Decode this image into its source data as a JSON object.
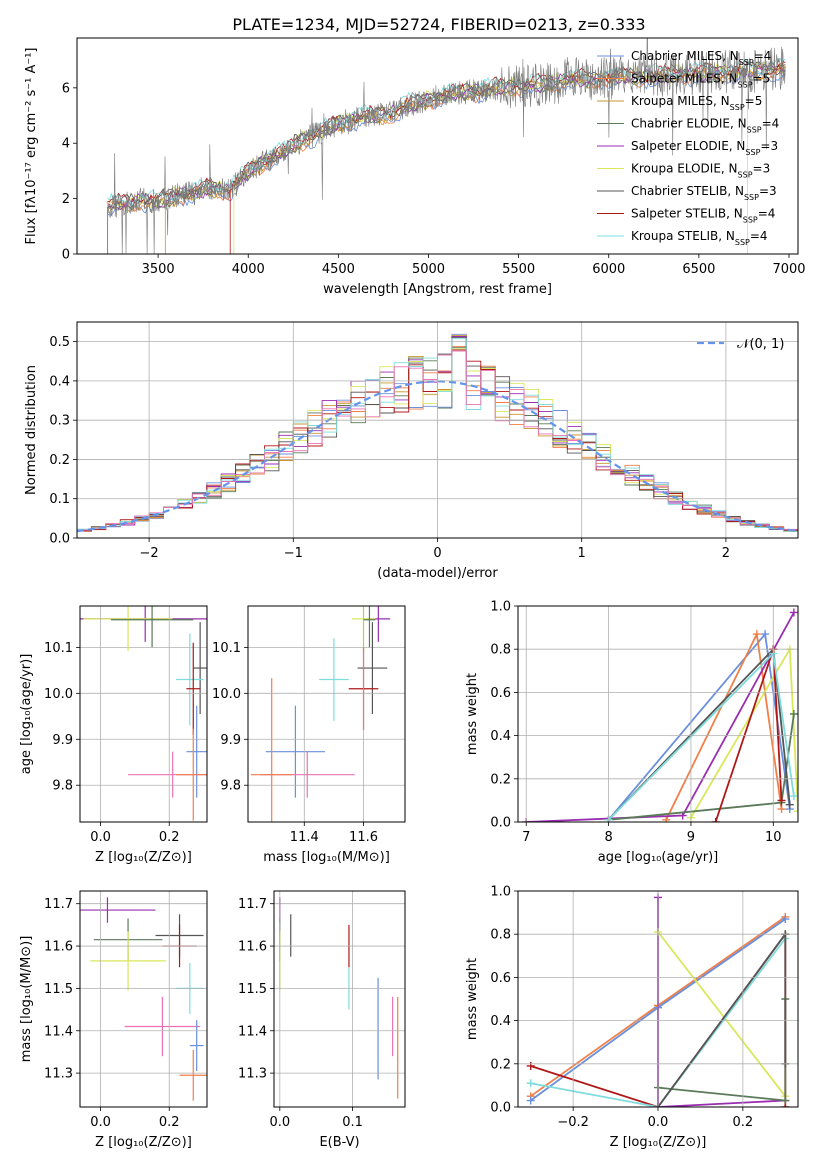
{
  "title": "PLATE=1234, MJD=52724, FIBERID=0213, z=0.333",
  "legend_entries": [
    {
      "label": "Chabrier MILES, N",
      "sub": "SSP",
      "suffix": "=4",
      "color": "#6a8fdc"
    },
    {
      "label": "Salpeter MILES, N",
      "sub": "SSP",
      "suffix": "=5",
      "color": "#f07f48"
    },
    {
      "label": "Kroupa MILES, N",
      "sub": "SSP",
      "suffix": "=5",
      "color": "#c8962c"
    },
    {
      "label": "Chabrier ELODIE, N",
      "sub": "SSP",
      "suffix": "=4",
      "color": "#5a7a5a"
    },
    {
      "label": "Salpeter ELODIE, N",
      "sub": "SSP",
      "suffix": "=3",
      "color": "#9a2db0"
    },
    {
      "label": "Kroupa ELODIE, N",
      "sub": "SSP",
      "suffix": "=3",
      "color": "#d8e85a"
    },
    {
      "label": "Chabrier STELIB, N",
      "sub": "SSP",
      "suffix": "=3",
      "color": "#555555"
    },
    {
      "label": "Salpeter STELIB, N",
      "sub": "SSP",
      "suffix": "=4",
      "color": "#b01818"
    },
    {
      "label": "Kroupa STELIB, N",
      "sub": "SSP",
      "suffix": "=4",
      "color": "#7fdcdc"
    }
  ],
  "chart_data": [
    {
      "id": "spectrum",
      "type": "line",
      "xlabel": "wavelength [Angstrom, rest frame]",
      "ylabel": "Flux [fλ10⁻¹⁷ erg cm⁻² s⁻¹ A⁻¹]",
      "xlim": [
        3050,
        7050
      ],
      "ylim": [
        0,
        7.8
      ],
      "xticks": [
        3500,
        4000,
        4500,
        5000,
        5500,
        6000,
        6500,
        7000
      ],
      "yticks": [
        0,
        2,
        4,
        6
      ],
      "grid": false,
      "legend_placement": "right",
      "continuum": {
        "x": [
          3220,
          3300,
          3400,
          3500,
          3600,
          3700,
          3800,
          3900,
          4000,
          4100,
          4200,
          4300,
          4400,
          4500,
          4600,
          4700,
          4800,
          4900,
          5000,
          5100,
          5200,
          5300,
          5400,
          5500,
          5600,
          5700,
          5800,
          5900,
          6000,
          6100,
          6200,
          6300,
          6400,
          6500,
          6600,
          6700,
          6800,
          6900,
          7000
        ],
        "y": [
          1.7,
          1.8,
          1.95,
          1.9,
          2.1,
          2.2,
          2.4,
          2.3,
          3.0,
          3.4,
          3.7,
          4.1,
          4.4,
          4.7,
          4.9,
          5.0,
          5.1,
          5.4,
          5.6,
          5.7,
          5.85,
          5.9,
          6.0,
          6.1,
          6.1,
          6.2,
          6.3,
          6.3,
          6.35,
          6.4,
          6.4,
          6.45,
          6.5,
          6.5,
          6.55,
          6.6,
          6.6,
          6.65,
          6.7
        ]
      }
    },
    {
      "id": "residuals",
      "type": "histogram",
      "xlabel": "(data-model)/error",
      "ylabel": "Normed distribution",
      "xlim": [
        -2.5,
        2.5
      ],
      "ylim": [
        0,
        0.55
      ],
      "xticks": [
        -2,
        -1,
        0,
        1,
        2
      ],
      "yticks": [
        0.0,
        0.1,
        0.2,
        0.3,
        0.4,
        0.5
      ],
      "grid": true,
      "legend": "𝒩(0, 1)",
      "legend_placement": "top-right",
      "bin_width": 0.1,
      "reference_curve": "gaussian mean 0, sigma 1"
    },
    {
      "id": "age_vs_Z",
      "type": "scatter",
      "xlabel": "Z [log₁₀(Z/Z⊙)]",
      "ylabel": "age  [log₁₀(age/yr)]",
      "xlim": [
        -0.06,
        0.31
      ],
      "ylim": [
        9.72,
        10.19
      ],
      "xticks": [
        0.0,
        0.2
      ],
      "yticks": [
        9.8,
        9.9,
        10.0,
        10.1
      ],
      "grid": true,
      "points": [
        {
          "x": 0.13,
          "y": 10.162,
          "xerr": 0.19,
          "yerr": 0.05,
          "color": "#9a2db0"
        },
        {
          "x": 0.08,
          "y": 10.162,
          "xerr": 0.13,
          "yerr": 0.07,
          "color": "#d8e85a"
        },
        {
          "x": 0.15,
          "y": 10.16,
          "xerr": 0.12,
          "yerr": 0.06,
          "color": "#5a7a5a"
        },
        {
          "x": 0.29,
          "y": 10.055,
          "xerr": 0.02,
          "yerr": 0.1,
          "color": "#555555"
        },
        {
          "x": 0.26,
          "y": 10.03,
          "xerr": 0.04,
          "yerr": 0.1,
          "color": "#7fdcdc"
        },
        {
          "x": 0.27,
          "y": 10.01,
          "xerr": 0.02,
          "yerr": 0.1,
          "color": "#b01818"
        },
        {
          "x": 0.28,
          "y": 9.873,
          "xerr": 0.03,
          "yerr": 0.1,
          "color": "#6a8fdc"
        },
        {
          "x": 0.21,
          "y": 9.823,
          "xerr": 0.13,
          "yerr": 0.05,
          "color": "#ea72b4"
        },
        {
          "x": 0.27,
          "y": 9.823,
          "xerr": 0.05,
          "yerr": 0.1,
          "color": "#f07f48"
        }
      ]
    },
    {
      "id": "age_vs_mass",
      "type": "scatter",
      "xlabel": "mass [log₁₀(M/M⊙)]",
      "ylabel": "",
      "xlim": [
        11.21,
        11.74
      ],
      "ylim": [
        9.72,
        10.19
      ],
      "xticks": [
        11.4,
        11.6
      ],
      "yticks": [
        9.8,
        9.9,
        10.0,
        10.1
      ],
      "grid": true,
      "points": [
        {
          "x": 11.65,
          "y": 10.162,
          "xerr": 0.04,
          "yerr": 0.05,
          "color": "#9a2db0"
        },
        {
          "x": 11.6,
          "y": 10.162,
          "xerr": 0.04,
          "yerr": 0.07,
          "color": "#d8e85a"
        },
        {
          "x": 11.62,
          "y": 10.16,
          "xerr": 0.02,
          "yerr": 0.06,
          "color": "#5a7a5a"
        },
        {
          "x": 11.63,
          "y": 10.055,
          "xerr": 0.05,
          "yerr": 0.1,
          "color": "#555555"
        },
        {
          "x": 11.5,
          "y": 10.03,
          "xerr": 0.05,
          "yerr": 0.09,
          "color": "#7fdcdc"
        },
        {
          "x": 11.6,
          "y": 10.01,
          "xerr": 0.05,
          "yerr": 0.09,
          "color": "#b01818"
        },
        {
          "x": 11.37,
          "y": 9.873,
          "xerr": 0.1,
          "yerr": 0.1,
          "color": "#6a8fdc"
        },
        {
          "x": 11.41,
          "y": 9.823,
          "xerr": 0.16,
          "yerr": 0.05,
          "color": "#ea72b4"
        },
        {
          "x": 11.29,
          "y": 9.823,
          "xerr": 0.07,
          "yerr": 0.21,
          "color": "#f07f48"
        }
      ]
    },
    {
      "id": "weight_vs_age",
      "type": "line",
      "xlabel": "age  [log₁₀(age/yr)]",
      "ylabel": "mass weight",
      "xlim": [
        6.9,
        10.3
      ],
      "ylim": [
        0,
        1.0
      ],
      "xticks": [
        7,
        8,
        9,
        10
      ],
      "yticks": [
        0.0,
        0.2,
        0.4,
        0.6,
        0.8,
        1.0
      ],
      "grid": true,
      "series": [
        {
          "color": "#6a8fdc",
          "x": [
            8.0,
            9.9,
            10.2
          ],
          "y": [
            0.01,
            0.87,
            0.06
          ]
        },
        {
          "color": "#f07f48",
          "x": [
            8.7,
            9.8,
            10.1
          ],
          "y": [
            0.01,
            0.87,
            0.06
          ]
        },
        {
          "color": "#9a2db0",
          "x": [
            7.0,
            8.9,
            10.25
          ],
          "y": [
            0.0,
            0.03,
            0.97
          ]
        },
        {
          "color": "#d8e85a",
          "x": [
            9.0,
            10.2,
            10.3
          ],
          "y": [
            0.02,
            0.8,
            0.05
          ]
        },
        {
          "color": "#5a7a5a",
          "x": [
            8.0,
            10.1,
            10.25
          ],
          "y": [
            0.01,
            0.09,
            0.5
          ]
        },
        {
          "color": "#555555",
          "x": [
            8.0,
            10.0,
            10.2
          ],
          "y": [
            0.01,
            0.8,
            0.08
          ]
        },
        {
          "color": "#b01818",
          "x": [
            9.3,
            10.0,
            10.1
          ],
          "y": [
            0.0,
            0.8,
            0.1
          ]
        },
        {
          "color": "#7fdcdc",
          "x": [
            8.0,
            10.0,
            10.25
          ],
          "y": [
            0.01,
            0.78,
            0.12
          ]
        }
      ]
    },
    {
      "id": "mass_vs_Z",
      "type": "scatter",
      "xlabel": "Z [log₁₀(Z/Z⊙)]",
      "ylabel": "mass [log₁₀(M/M⊙)]",
      "xlim": [
        -0.06,
        0.31
      ],
      "ylim": [
        11.22,
        11.73
      ],
      "xticks": [
        0.0,
        0.2
      ],
      "yticks": [
        11.3,
        11.4,
        11.5,
        11.6,
        11.7
      ],
      "grid": true,
      "points": [
        {
          "x": 0.02,
          "y": 11.685,
          "xerr": 0.14,
          "yerr": 0.03,
          "color": "#9a2db0"
        },
        {
          "x": 0.23,
          "y": 11.625,
          "xerr": 0.07,
          "yerr": 0.05,
          "color": "#555555"
        },
        {
          "x": 0.08,
          "y": 11.615,
          "xerr": 0.1,
          "yerr": 0.05,
          "color": "#5a7a5a"
        },
        {
          "x": 0.23,
          "y": 11.6,
          "xerr": 0.05,
          "yerr": 0.05,
          "color": "#b01818"
        },
        {
          "x": 0.08,
          "y": 11.565,
          "xerr": 0.11,
          "yerr": 0.07,
          "color": "#d8e85a"
        },
        {
          "x": 0.26,
          "y": 11.5,
          "xerr": 0.04,
          "yerr": 0.06,
          "color": "#7fdcdc"
        },
        {
          "x": 0.18,
          "y": 11.41,
          "xerr": 0.11,
          "yerr": 0.07,
          "color": "#ea72b4"
        },
        {
          "x": 0.28,
          "y": 11.365,
          "xerr": 0.02,
          "yerr": 0.06,
          "color": "#6a8fdc"
        },
        {
          "x": 0.27,
          "y": 11.295,
          "xerr": 0.04,
          "yerr": 0.06,
          "color": "#f07f48"
        }
      ]
    },
    {
      "id": "mass_vs_ebv",
      "type": "scatter",
      "xlabel": "E(B-V)",
      "ylabel": "",
      "xlim": [
        -0.008,
        0.172
      ],
      "ylim": [
        11.22,
        11.73
      ],
      "xticks": [
        0.0,
        0.1
      ],
      "yticks": [
        11.3,
        11.4,
        11.5,
        11.6,
        11.7
      ],
      "grid": true,
      "points": [
        {
          "x": 0.0,
          "y": 11.685,
          "xerr": 0.0,
          "yerr": 0.03,
          "color": "#9a2db0"
        },
        {
          "x": 0.015,
          "y": 11.625,
          "xerr": 0.0,
          "yerr": 0.05,
          "color": "#555555"
        },
        {
          "x": 0.0,
          "y": 11.615,
          "xerr": 0.0,
          "yerr": 0.05,
          "color": "#5a7a5a"
        },
        {
          "x": 0.095,
          "y": 11.6,
          "xerr": 0.0,
          "yerr": 0.05,
          "color": "#b01818"
        },
        {
          "x": 0.0,
          "y": 11.565,
          "xerr": 0.0,
          "yerr": 0.07,
          "color": "#d8e85a"
        },
        {
          "x": 0.095,
          "y": 11.5,
          "xerr": 0.0,
          "yerr": 0.05,
          "color": "#7fdcdc"
        },
        {
          "x": 0.155,
          "y": 11.41,
          "xerr": 0.0,
          "yerr": 0.07,
          "color": "#ea72b4"
        },
        {
          "x": 0.135,
          "y": 11.405,
          "xerr": 0.0,
          "yerr": 0.12,
          "color": "#6a8fdc"
        },
        {
          "x": 0.162,
          "y": 11.36,
          "xerr": 0.0,
          "yerr": 0.12,
          "color": "#f07f48"
        }
      ]
    },
    {
      "id": "weight_vs_Z",
      "type": "line",
      "xlabel": "Z [log₁₀(Z/Z⊙)]",
      "ylabel": "mass weight",
      "xlim": [
        -0.33,
        0.33
      ],
      "ylim": [
        0,
        1.0
      ],
      "xticks": [
        -0.2,
        0.0,
        0.2
      ],
      "yticks": [
        0.0,
        0.2,
        0.4,
        0.6,
        0.8,
        1.0
      ],
      "grid": true,
      "series": [
        {
          "color": "#f07f48",
          "x": [
            -0.3,
            0.0,
            0.3
          ],
          "y": [
            0.05,
            0.47,
            0.88
          ]
        },
        {
          "color": "#6a8fdc",
          "x": [
            -0.3,
            0.0,
            0.3
          ],
          "y": [
            0.03,
            0.46,
            0.87
          ]
        },
        {
          "color": "#9a2db0",
          "x": [
            0.0,
            0.0,
            0.3
          ],
          "y": [
            0.97,
            0.0,
            0.03
          ]
        },
        {
          "color": "#d8e85a",
          "x": [
            0.0,
            0.3
          ],
          "y": [
            0.81,
            0.05
          ]
        },
        {
          "color": "#b01818",
          "x": [
            -0.3,
            0.0,
            0.3,
            0.3
          ],
          "y": [
            0.19,
            0.0,
            0.8,
            0.0
          ]
        },
        {
          "color": "#7fdcdc",
          "x": [
            -0.3,
            0.0,
            0.3
          ],
          "y": [
            0.11,
            0.0,
            0.78
          ]
        },
        {
          "color": "#5a7a5a",
          "x": [
            0.0,
            0.3,
            0.3
          ],
          "y": [
            0.09,
            0.03,
            0.5
          ]
        },
        {
          "color": "#555555",
          "x": [
            0.0,
            0.3,
            0.3
          ],
          "y": [
            0.0,
            0.8,
            0.2
          ]
        }
      ]
    }
  ]
}
